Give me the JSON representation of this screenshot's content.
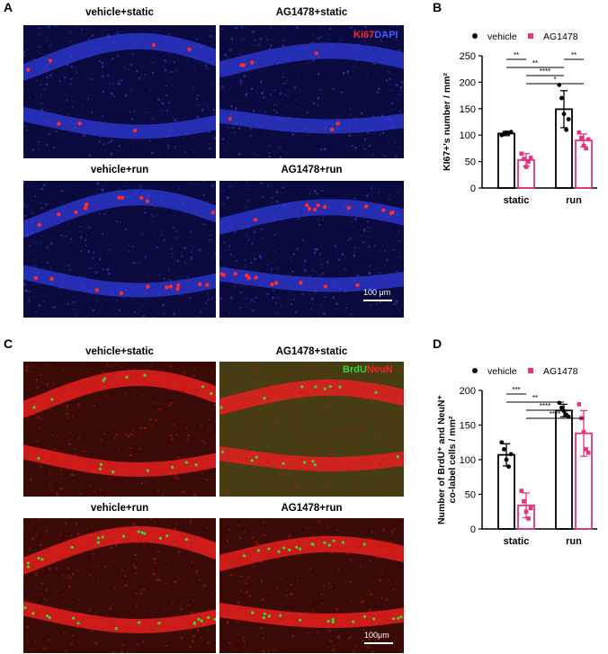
{
  "panels": {
    "A": {
      "letter": "A",
      "titles": [
        "vehicle+static",
        "AG1478+static",
        "vehicle+run",
        "AG1478+run"
      ],
      "stain_1": "Ki67",
      "stain_2": "DAPI",
      "scale_label": "100 μm"
    },
    "C": {
      "letter": "C",
      "titles": [
        "vehicle+static",
        "AG1478+static",
        "vehicle+run",
        "AG1478+run"
      ],
      "stain_1": "BrdU",
      "stain_2": "NeuN",
      "scale_label": "100μm"
    },
    "B": {
      "letter": "B"
    },
    "D": {
      "letter": "D"
    }
  },
  "colors": {
    "vehicle": "#000000",
    "ag1478": "#e8327c",
    "dapi_blue": "#2a34c8",
    "ki67_red": "#ff2a2a",
    "neun_red": "#e81e1e",
    "brdu_green": "#3bd23b"
  },
  "chart_data": [
    {
      "type": "bar",
      "panel": "B",
      "categories": [
        "static",
        "run"
      ],
      "ylabel": "KI67+'s number / mm²",
      "ylim": [
        0,
        250
      ],
      "yticks": [
        0,
        50,
        100,
        150,
        200,
        250
      ],
      "legend_placement": "top",
      "series": [
        {
          "name": "vehicle",
          "values": [
            103,
            149
          ],
          "sd": [
            4,
            35
          ],
          "points": [
            [
              100,
              103,
              105,
              104,
              106
            ],
            [
              195,
              170,
              140,
              110,
              130
            ]
          ]
        },
        {
          "name": "AG1478",
          "values": [
            53,
            90
          ],
          "sd": [
            12,
            12
          ],
          "points": [
            [
              65,
              55,
              40,
              50,
              57
            ],
            [
              105,
              95,
              80,
              75,
              92
            ]
          ]
        }
      ],
      "significance": [
        {
          "label": "**",
          "from": [
            0,
            0
          ],
          "to": [
            0,
            1
          ],
          "level": 0
        },
        {
          "label": "**",
          "from": [
            0,
            0
          ],
          "to": [
            1,
            0
          ],
          "level": 1
        },
        {
          "label": "****",
          "from": [
            0,
            1
          ],
          "to": [
            1,
            0
          ],
          "level": 2
        },
        {
          "label": "*",
          "from": [
            0,
            1
          ],
          "to": [
            1,
            1
          ],
          "level": 3
        },
        {
          "label": "**",
          "from": [
            1,
            0
          ],
          "to": [
            1,
            1
          ],
          "level": 0
        }
      ]
    },
    {
      "type": "bar",
      "panel": "D",
      "categories": [
        "static",
        "run"
      ],
      "ylabel": "Number of BrdU⁺ and NeuN⁺ co-label cells / mm²",
      "ylim": [
        0,
        200
      ],
      "yticks": [
        0,
        50,
        100,
        150,
        200
      ],
      "legend_placement": "top",
      "series": [
        {
          "name": "vehicle",
          "values": [
            107,
            171
          ],
          "sd": [
            16,
            9
          ],
          "points": [
            [
              125,
              115,
              100,
              90,
              108
            ],
            [
              182,
              175,
              170,
              165,
              162
            ]
          ]
        },
        {
          "name": "AG1478",
          "values": [
            34,
            138
          ],
          "sd": [
            18,
            33
          ],
          "points": [
            [
              55,
              40,
              25,
              15,
              30
            ],
            [
              180,
              160,
              140,
              115,
              110
            ]
          ]
        }
      ],
      "significance": [
        {
          "label": "***",
          "from": [
            0,
            0
          ],
          "to": [
            0,
            1
          ],
          "level": 0
        },
        {
          "label": "**",
          "from": [
            0,
            0
          ],
          "to": [
            1,
            0
          ],
          "level": 1
        },
        {
          "label": "****",
          "from": [
            0,
            1
          ],
          "to": [
            1,
            0
          ],
          "level": 2
        },
        {
          "label": "****",
          "from": [
            0,
            1
          ],
          "to": [
            1,
            1
          ],
          "level": 3
        }
      ]
    }
  ]
}
